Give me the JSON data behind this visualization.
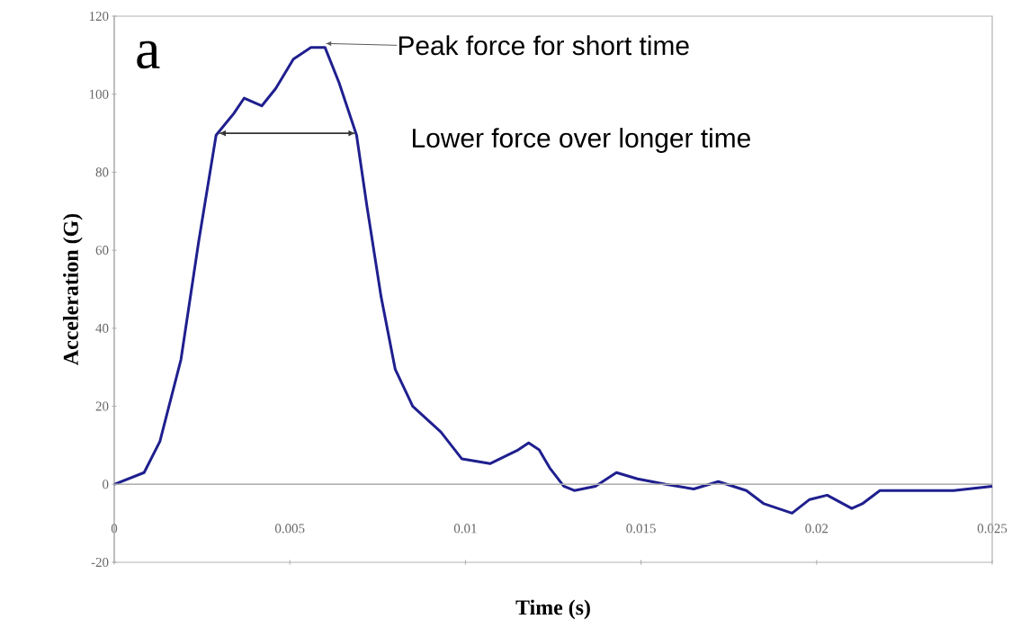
{
  "chart_data": {
    "type": "line",
    "xlabel": "Time (s)",
    "ylabel": "Acceleration (G)",
    "xlim": [
      0,
      0.025
    ],
    "ylim": [
      -20,
      120
    ],
    "xticks": [
      0,
      0.005,
      0.01,
      0.015,
      0.02,
      0.025
    ],
    "yticks": [
      -20,
      0,
      20,
      40,
      60,
      80,
      100,
      120
    ],
    "grid": false,
    "ref_lines": [
      {
        "axis": "y",
        "value": 0,
        "color": "#b0b0b0"
      }
    ],
    "marker": "none",
    "line_style": "solid",
    "annotations": [
      "a",
      {
        "text": "Peak force for short time",
        "x": 0.006,
        "y": 113
      },
      {
        "text": "Lower force over longer time",
        "x": 0.0069,
        "y": 90
      }
    ],
    "series": [
      {
        "color": "#1f1f8f",
        "x": [
          0,
          0.00085,
          0.0013,
          0.0019,
          0.0024,
          0.0029,
          0.0034,
          0.0037,
          0.0042,
          0.0046,
          0.0051,
          0.0056,
          0.006,
          0.0064,
          0.0069,
          0.0072,
          0.0076,
          0.008,
          0.0085,
          0.0093,
          0.0099,
          0.0107,
          0.0115,
          0.0118,
          0.0121,
          0.0124,
          0.0128,
          0.0131,
          0.0137,
          0.0143,
          0.0149,
          0.0157,
          0.0165,
          0.0172,
          0.018,
          0.0185,
          0.0193,
          0.0198,
          0.0203,
          0.021,
          0.0213,
          0.0218,
          0.0229,
          0.0239,
          0.025
        ],
        "values": [
          0,
          3,
          11,
          32,
          62,
          89.5,
          95,
          99,
          97,
          101.5,
          109,
          112,
          112,
          103,
          89.5,
          71,
          48,
          29.5,
          20,
          13.4,
          6.5,
          5.3,
          8.8,
          10.6,
          8.8,
          4.2,
          -0.5,
          -1.6,
          -0.5,
          3,
          1.4,
          0,
          -1.2,
          0.7,
          -1.6,
          -5,
          -7.4,
          -3.9,
          -2.8,
          -6.2,
          -5,
          -1.6,
          -1.6,
          -1.6,
          -0.5
        ]
      }
    ]
  }
}
